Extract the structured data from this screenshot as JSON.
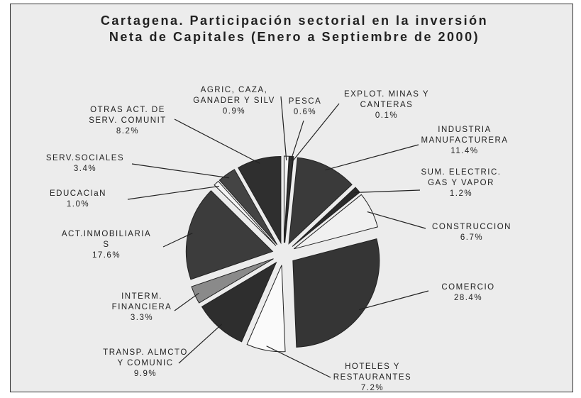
{
  "chart_data": {
    "type": "pie",
    "title": "Cartagena. Participación sectorial en la inversión\nNeta de Capitales (Enero a Septiembre de 2000)",
    "categories": [
      "AGRIC, CAZA,\nGANADER Y SILV",
      "PESCA",
      "EXPLOT. MINAS Y\nCANTERAS",
      "INDUSTRIA\nMANUFACTURERA",
      "SUM. ELECTRIC.\nGAS Y VAPOR",
      "CONSTRUCCION",
      "COMERCIO",
      "HOTELES Y\nRESTAURANTES",
      "TRANSP. ALMCTO\nY COMUNIC",
      "INTERM.\nFINANCIERA",
      "ACT.INMOBILIARIA\nS",
      "EDUCACIaN",
      "SERV.SOCIALES",
      "OTRAS ACT. DE\nSERV. COMUNIT"
    ],
    "values": [
      0.9,
      0.6,
      0.1,
      11.4,
      1.2,
      6.7,
      28.4,
      7.2,
      9.9,
      3.3,
      17.6,
      1.0,
      3.4,
      8.2
    ],
    "value_labels": [
      "0.9%",
      "0.6%",
      "0.1%",
      "11.4%",
      "1.2%",
      "6.7%",
      "28.4%",
      "7.2%",
      "9.9%",
      "3.3%",
      "17.6%",
      "1.0%",
      "3.4%",
      "8.2%"
    ],
    "colors": [
      "#f4f4f4",
      "#333333",
      "#f4f4f4",
      "#3a3a3a",
      "#2a2a2a",
      "#f0f0f0",
      "#353535",
      "#fafafa",
      "#2e2e2e",
      "#8a8a8a",
      "#3c3c3c",
      "#f4f4f4",
      "#444444",
      "#2f2f2f"
    ]
  }
}
